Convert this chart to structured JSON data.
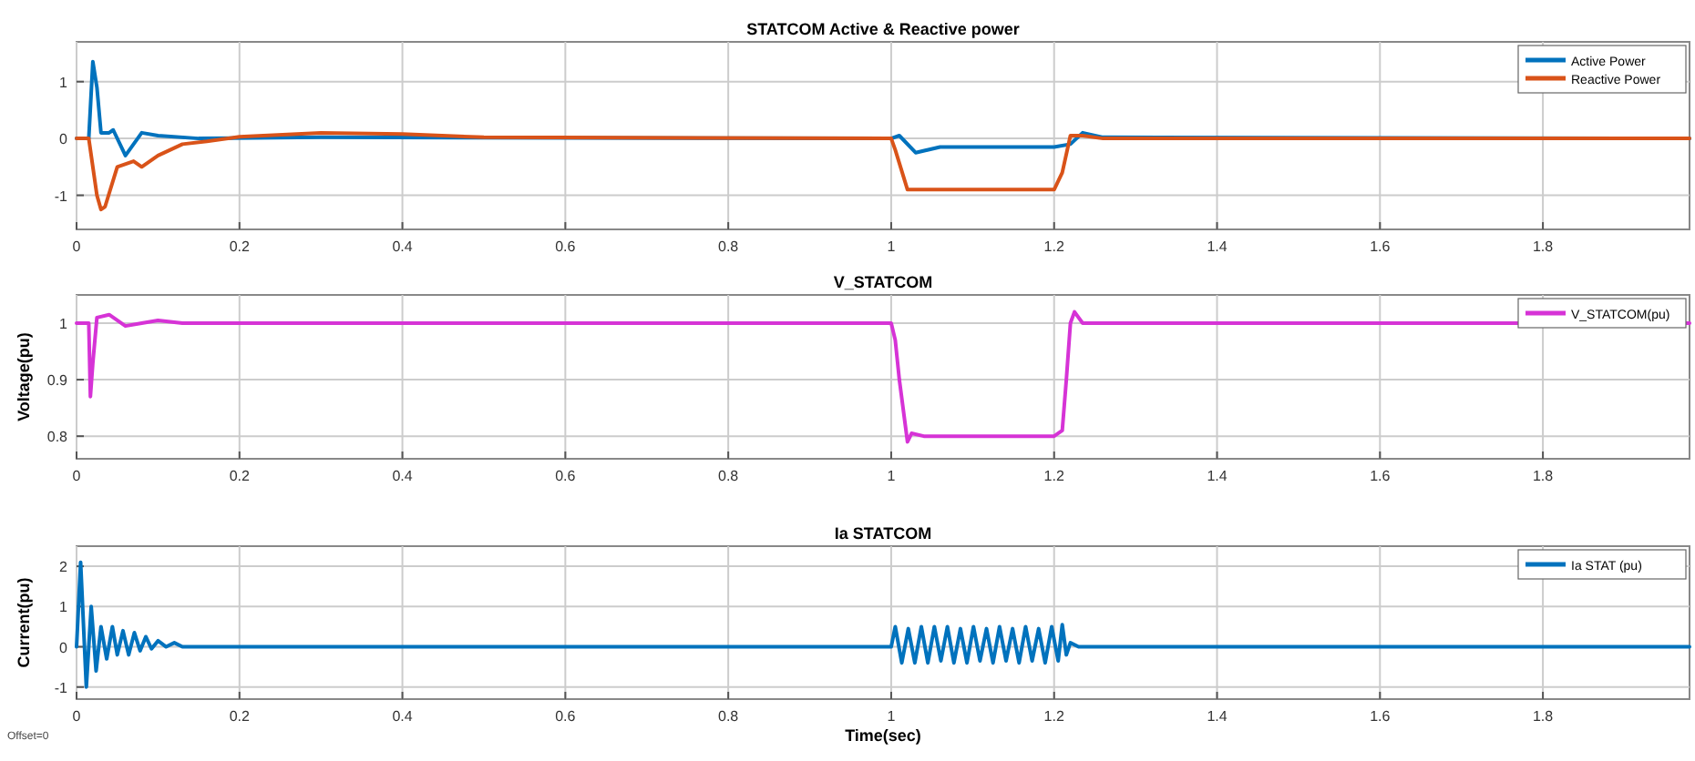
{
  "chart_data": [
    {
      "type": "line",
      "title": "STATCOM Active & Reactive power",
      "xlim": [
        0,
        1.98
      ],
      "xticks": [
        0,
        0.2,
        0.4,
        0.6,
        0.8,
        1,
        1.2,
        1.4,
        1.6,
        1.8
      ],
      "ylim": [
        -1.6,
        1.7
      ],
      "yticks": [
        -1,
        0,
        1
      ],
      "grid": true,
      "legend": "top right",
      "series": [
        {
          "name": "Active Power",
          "color": "#0072bd",
          "x": [
            0,
            0.015,
            0.02,
            0.025,
            0.03,
            0.04,
            0.045,
            0.06,
            0.08,
            0.1,
            0.15,
            0.3,
            1.0,
            1.01,
            1.03,
            1.06,
            1.2,
            1.22,
            1.235,
            1.26,
            1.98
          ],
          "values": [
            0,
            0,
            1.35,
            0.9,
            0.1,
            0.1,
            0.15,
            -0.3,
            0.1,
            0.05,
            0,
            0.02,
            0,
            0.05,
            -0.25,
            -0.15,
            -0.15,
            -0.1,
            0.1,
            0.02,
            0
          ]
        },
        {
          "name": "Reactive Power",
          "color": "#d95319",
          "x": [
            0,
            0.015,
            0.025,
            0.03,
            0.035,
            0.05,
            0.07,
            0.08,
            0.1,
            0.13,
            0.16,
            0.2,
            0.3,
            0.4,
            0.5,
            1.0,
            1.005,
            1.02,
            1.2,
            1.21,
            1.22,
            1.235,
            1.26,
            1.98
          ],
          "values": [
            0,
            0,
            -1,
            -1.25,
            -1.2,
            -0.5,
            -0.4,
            -0.5,
            -0.3,
            -0.1,
            -0.05,
            0.03,
            0.1,
            0.08,
            0.02,
            0,
            -0.2,
            -0.9,
            -0.9,
            -0.6,
            0.05,
            0.05,
            0,
            0
          ]
        }
      ]
    },
    {
      "type": "line",
      "title": "V_STATCOM",
      "ylabel": "Voltage(pu)",
      "xlim": [
        0,
        1.98
      ],
      "xticks": [
        0,
        0.2,
        0.4,
        0.6,
        0.8,
        1,
        1.2,
        1.4,
        1.6,
        1.8
      ],
      "ylim": [
        0.76,
        1.05
      ],
      "yticks": [
        0.8,
        0.9,
        1
      ],
      "grid": true,
      "legend": "top right",
      "series": [
        {
          "name": "V_STATCOM(pu)",
          "color": "#d633d6",
          "x": [
            0,
            0.015,
            0.017,
            0.02,
            0.025,
            0.04,
            0.06,
            0.08,
            0.1,
            0.13,
            1.0,
            1.005,
            1.01,
            1.02,
            1.025,
            1.04,
            1.2,
            1.21,
            1.215,
            1.22,
            1.225,
            1.235,
            1.26,
            1.98
          ],
          "values": [
            1,
            1,
            0.87,
            0.93,
            1.01,
            1.015,
            0.995,
            1.0,
            1.005,
            1.0,
            1,
            0.97,
            0.9,
            0.79,
            0.805,
            0.8,
            0.8,
            0.81,
            0.9,
            1.0,
            1.02,
            1.0,
            1.0,
            1
          ]
        }
      ]
    },
    {
      "type": "line",
      "title": "Ia STATCOM",
      "xlabel": "Time(sec)",
      "ylabel": "Current(pu)",
      "xlim": [
        0,
        1.98
      ],
      "xticks": [
        0,
        0.2,
        0.4,
        0.6,
        0.8,
        1,
        1.2,
        1.4,
        1.6,
        1.8
      ],
      "ylim": [
        -1.3,
        2.5
      ],
      "yticks": [
        -1,
        0,
        1,
        2
      ],
      "grid": true,
      "legend": "top right",
      "annotations": [
        "Offset=0"
      ],
      "series": [
        {
          "name": "Ia STAT (pu)",
          "color": "#0072bd",
          "x": [
            0,
            0.005,
            0.012,
            0.018,
            0.024,
            0.03,
            0.037,
            0.044,
            0.05,
            0.057,
            0.064,
            0.071,
            0.078,
            0.085,
            0.092,
            0.1,
            0.11,
            0.12,
            0.13,
            1.0,
            1.005,
            1.013,
            1.021,
            1.029,
            1.037,
            1.045,
            1.053,
            1.061,
            1.069,
            1.077,
            1.085,
            1.093,
            1.101,
            1.109,
            1.117,
            1.125,
            1.133,
            1.141,
            1.149,
            1.157,
            1.165,
            1.173,
            1.181,
            1.189,
            1.197,
            1.205,
            1.21,
            1.215,
            1.22,
            1.23,
            1.98
          ],
          "values": [
            0,
            2.1,
            -1,
            1,
            -0.6,
            0.5,
            -0.3,
            0.5,
            -0.2,
            0.4,
            -0.2,
            0.35,
            -0.1,
            0.25,
            -0.05,
            0.15,
            0,
            0.1,
            0,
            0,
            0.5,
            -0.4,
            0.45,
            -0.4,
            0.5,
            -0.4,
            0.5,
            -0.35,
            0.5,
            -0.4,
            0.45,
            -0.4,
            0.5,
            -0.35,
            0.45,
            -0.4,
            0.5,
            -0.35,
            0.45,
            -0.4,
            0.5,
            -0.35,
            0.45,
            -0.4,
            0.5,
            -0.35,
            0.55,
            -0.2,
            0.1,
            0,
            0
          ]
        }
      ]
    }
  ]
}
